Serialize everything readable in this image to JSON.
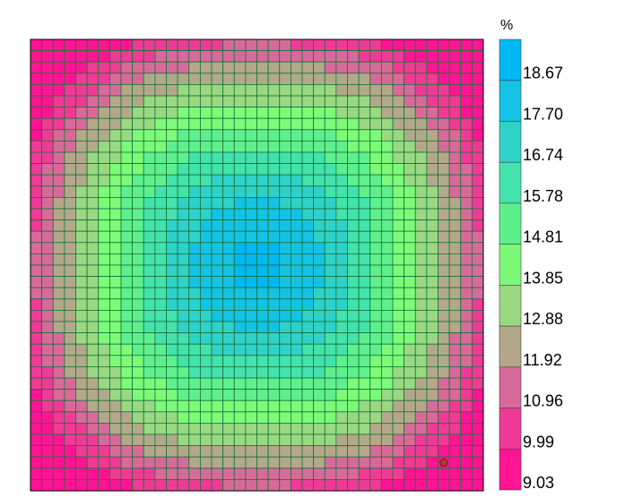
{
  "chart_data": {
    "type": "heatmap",
    "title": "",
    "xlabel": "",
    "ylabel": "",
    "grid": true,
    "grid_cells": [
      40,
      40
    ],
    "value_range": [
      9.03,
      19.63
    ],
    "peak_value": 19.0,
    "edge_value": 9.1,
    "colorbar": {
      "unit": "%",
      "tick_labels": [
        "18.67",
        "17.70",
        "16.74",
        "15.78",
        "14.81",
        "13.85",
        "12.88",
        "11.92",
        "10.96",
        "9.99",
        "9.03"
      ],
      "bands": [
        {
          "min": 9.03,
          "max": 9.99,
          "color": "#ff1493"
        },
        {
          "min": 9.99,
          "max": 10.96,
          "color": "#ef3b96"
        },
        {
          "min": 10.96,
          "max": 11.92,
          "color": "#d86a9a"
        },
        {
          "min": 11.92,
          "max": 12.88,
          "color": "#b4a88a"
        },
        {
          "min": 12.88,
          "max": 13.85,
          "color": "#9ad882"
        },
        {
          "min": 13.85,
          "max": 14.81,
          "color": "#7dfa78"
        },
        {
          "min": 14.81,
          "max": 15.78,
          "color": "#5ff08e"
        },
        {
          "min": 15.78,
          "max": 16.74,
          "color": "#44e2ad"
        },
        {
          "min": 16.74,
          "max": 17.7,
          "color": "#2fd2c8"
        },
        {
          "min": 17.7,
          "max": 18.67,
          "color": "#14c2e4"
        },
        {
          "min": 18.67,
          "max": 19.63,
          "color": "#00b8f2"
        }
      ]
    },
    "marker": {
      "col": 36,
      "row": 37,
      "color": "#b03a2e"
    }
  }
}
